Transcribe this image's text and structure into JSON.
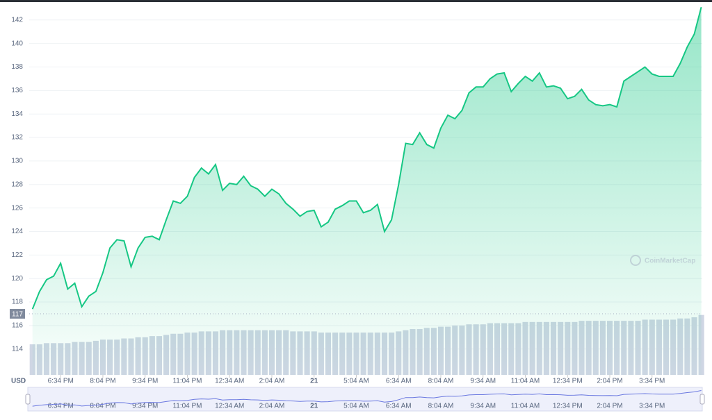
{
  "chart_data": {
    "type": "area",
    "x": [
      1054,
      1069,
      1084,
      1099,
      1114,
      1129,
      1144,
      1159,
      1174,
      1189,
      1204,
      1219,
      1234,
      1249,
      1264,
      1279,
      1294,
      1309,
      1324,
      1339,
      1354,
      1369,
      1384,
      1399,
      1414,
      1429,
      1444,
      1459,
      1474,
      1489,
      1504,
      1519,
      1534,
      1549,
      1564,
      1579,
      1594,
      1609,
      1624,
      1639,
      1654,
      1669,
      1684,
      1699,
      1714,
      1729,
      1744,
      1759,
      1774,
      1789,
      1804,
      1819,
      1834,
      1849,
      1864,
      1879,
      1894,
      1909,
      1924,
      1939,
      1954,
      1969,
      1984,
      1999,
      2014,
      2029,
      2044,
      2059,
      2074,
      2089,
      2104,
      2119,
      2134,
      2149,
      2164,
      2179,
      2194,
      2209,
      2224,
      2239,
      2254,
      2269,
      2284,
      2299,
      2314,
      2329,
      2344,
      2359,
      2374,
      2389,
      2404,
      2419,
      2434,
      2449,
      2464,
      2479
    ],
    "series": [
      {
        "color": "#16c784",
        "values": [
          117.4,
          118.9,
          119.9,
          120.2,
          121.3,
          119.1,
          119.6,
          117.6,
          118.5,
          118.9,
          120.5,
          122.6,
          123.3,
          123.2,
          121.0,
          122.6,
          123.5,
          123.6,
          123.3,
          125.0,
          126.6,
          126.4,
          127.0,
          128.6,
          129.4,
          128.9,
          129.7,
          127.5,
          128.1,
          128.0,
          128.7,
          127.9,
          127.6,
          127.0,
          127.6,
          127.2,
          126.4,
          125.9,
          125.3,
          125.7,
          125.8,
          124.4,
          124.8,
          125.9,
          126.2,
          126.6,
          126.6,
          125.6,
          125.8,
          126.3,
          124.0,
          125.0,
          128.0,
          131.5,
          131.4,
          132.4,
          131.4,
          131.1,
          132.8,
          133.9,
          133.6,
          134.3,
          135.8,
          136.3,
          136.3,
          137.0,
          137.4,
          137.5,
          135.9,
          136.6,
          137.2,
          136.8,
          137.5,
          136.3,
          136.4,
          136.2,
          135.3,
          135.5,
          136.1,
          135.2,
          134.8,
          134.7,
          134.8,
          134.6,
          136.8,
          137.2,
          137.6,
          138.0,
          137.4,
          137.2,
          137.2,
          137.2,
          138.3,
          139.7,
          140.8,
          143.1
        ]
      }
    ],
    "volume": {
      "color": "#cfd6e4",
      "values": [
        114.4,
        114.4,
        114.5,
        114.5,
        114.5,
        114.5,
        114.6,
        114.6,
        114.6,
        114.7,
        114.8,
        114.8,
        114.8,
        114.9,
        114.9,
        115.0,
        115.0,
        115.1,
        115.1,
        115.2,
        115.3,
        115.3,
        115.4,
        115.4,
        115.5,
        115.5,
        115.5,
        115.6,
        115.6,
        115.6,
        115.6,
        115.6,
        115.6,
        115.6,
        115.6,
        115.6,
        115.6,
        115.5,
        115.5,
        115.5,
        115.5,
        115.4,
        115.4,
        115.4,
        115.4,
        115.4,
        115.4,
        115.4,
        115.4,
        115.4,
        115.4,
        115.4,
        115.5,
        115.6,
        115.7,
        115.7,
        115.8,
        115.8,
        115.9,
        115.9,
        116.0,
        116.0,
        116.1,
        116.1,
        116.1,
        116.2,
        116.2,
        116.2,
        116.2,
        116.2,
        116.3,
        116.3,
        116.3,
        116.3,
        116.3,
        116.3,
        116.3,
        116.3,
        116.4,
        116.4,
        116.4,
        116.4,
        116.4,
        116.4,
        116.4,
        116.4,
        116.4,
        116.5,
        116.5,
        116.5,
        116.5,
        116.5,
        116.6,
        116.6,
        116.7,
        116.9
      ]
    },
    "baseline": 117,
    "xlim": [
      1047,
      2481
    ],
    "xticks": [
      {
        "value": 1114,
        "label": "6:34 PM"
      },
      {
        "value": 1204,
        "label": "8:04 PM"
      },
      {
        "value": 1294,
        "label": "9:34 PM"
      },
      {
        "value": 1384,
        "label": "11:04 PM"
      },
      {
        "value": 1474,
        "label": "12:34 AM"
      },
      {
        "value": 1564,
        "label": "2:04 AM"
      },
      {
        "value": 1654,
        "label": "21"
      },
      {
        "value": 1744,
        "label": "5:04 AM"
      },
      {
        "value": 1834,
        "label": "6:34 AM"
      },
      {
        "value": 1924,
        "label": "8:04 AM"
      },
      {
        "value": 2014,
        "label": "9:34 AM"
      },
      {
        "value": 2104,
        "label": "11:04 AM"
      },
      {
        "value": 2194,
        "label": "12:34 PM"
      },
      {
        "value": 2284,
        "label": "2:04 PM"
      },
      {
        "value": 2374,
        "label": "3:34 PM"
      }
    ],
    "ylim": [
      111.8,
      143.7
    ],
    "yticks": [
      114,
      116,
      118,
      120,
      122,
      124,
      126,
      128,
      130,
      132,
      134,
      136,
      138,
      140,
      142
    ],
    "grid": true,
    "currency": "USD",
    "watermark": "CoinMarketCap"
  }
}
